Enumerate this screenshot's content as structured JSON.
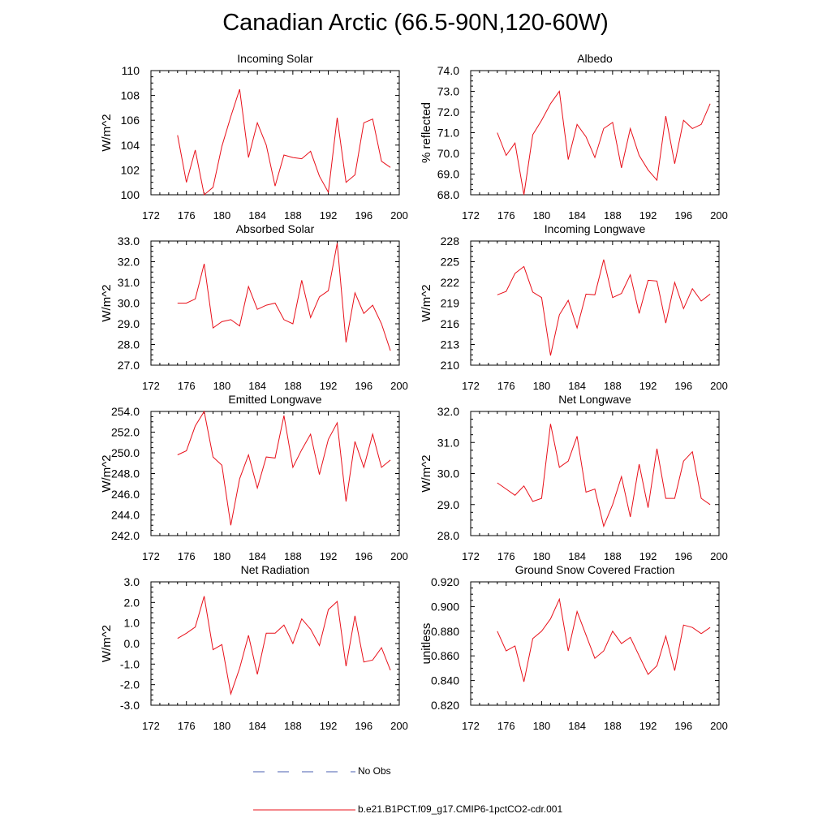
{
  "title": "Canadian Arctic (66.5-90N,120-60W)",
  "colors": {
    "series": "#e8101a",
    "obs": "#4a5fb0",
    "axis": "#000000"
  },
  "legend": {
    "obs_label": "No Obs",
    "model_label": "b.e21.B1PCT.f09_g17.CMIP6-1pctCO2-cdr.001"
  },
  "chart_data": [
    {
      "type": "line",
      "title": "Incoming Solar",
      "ylabel": "W/m^2",
      "xlim": [
        172,
        200
      ],
      "xticks": [
        "172",
        "176",
        "180",
        "184",
        "188",
        "192",
        "196",
        "200"
      ],
      "ylim": [
        100,
        110
      ],
      "yticks": [
        "100",
        "102",
        "104",
        "106",
        "108",
        "110"
      ],
      "x": [
        175,
        176,
        177,
        178,
        179,
        180,
        181,
        182,
        183,
        184,
        185,
        186,
        187,
        188,
        189,
        190,
        191,
        192,
        193,
        194,
        195,
        196,
        197,
        198,
        199
      ],
      "series": [
        {
          "values": [
            104.8,
            101.0,
            103.6,
            100.0,
            100.6,
            103.9,
            106.3,
            108.5,
            103.0,
            105.8,
            104.0,
            100.7,
            103.2,
            103.0,
            102.9,
            103.5,
            101.5,
            100.2,
            106.2,
            101.0,
            101.6,
            105.8,
            106.1,
            102.7,
            102.2
          ]
        }
      ]
    },
    {
      "type": "line",
      "title": "Albedo",
      "ylabel": "% reflected",
      "xlim": [
        172,
        200
      ],
      "xticks": [
        "172",
        "176",
        "180",
        "184",
        "188",
        "192",
        "196",
        "200"
      ],
      "ylim": [
        68.0,
        74.0
      ],
      "yticks": [
        "68.0",
        "69.0",
        "70.0",
        "71.0",
        "72.0",
        "73.0",
        "74.0"
      ],
      "x": [
        175,
        176,
        177,
        178,
        179,
        180,
        181,
        182,
        183,
        184,
        185,
        186,
        187,
        188,
        189,
        190,
        191,
        192,
        193,
        194,
        195,
        196,
        197,
        198,
        199
      ],
      "series": [
        {
          "values": [
            71.0,
            69.9,
            70.5,
            68.0,
            70.9,
            71.6,
            72.4,
            73.0,
            69.7,
            71.4,
            70.8,
            69.8,
            71.2,
            71.5,
            69.3,
            71.2,
            69.9,
            69.2,
            68.7,
            71.8,
            69.5,
            71.6,
            71.2,
            71.4,
            72.4
          ]
        }
      ]
    },
    {
      "type": "line",
      "title": "Absorbed Solar",
      "ylabel": "W/m^2",
      "xlim": [
        172,
        200
      ],
      "xticks": [
        "172",
        "176",
        "180",
        "184",
        "188",
        "192",
        "196",
        "200"
      ],
      "ylim": [
        27.0,
        33.0
      ],
      "yticks": [
        "27.0",
        "28.0",
        "29.0",
        "30.0",
        "31.0",
        "32.0",
        "33.0"
      ],
      "x": [
        175,
        176,
        177,
        178,
        179,
        180,
        181,
        182,
        183,
        184,
        185,
        186,
        187,
        188,
        189,
        190,
        191,
        192,
        193,
        194,
        195,
        196,
        197,
        198,
        199
      ],
      "series": [
        {
          "values": [
            30.0,
            30.0,
            30.2,
            31.9,
            28.8,
            29.1,
            29.2,
            28.9,
            30.8,
            29.7,
            29.9,
            30.0,
            29.2,
            29.0,
            31.1,
            29.3,
            30.3,
            30.6,
            32.9,
            28.1,
            30.5,
            29.5,
            29.9,
            29.0,
            27.7
          ]
        }
      ]
    },
    {
      "type": "line",
      "title": "Incoming Longwave",
      "ylabel": "W/m^2",
      "xlim": [
        172,
        200
      ],
      "xticks": [
        "172",
        "176",
        "180",
        "184",
        "188",
        "192",
        "196",
        "200"
      ],
      "ylim": [
        210,
        228
      ],
      "yticks": [
        "210",
        "213",
        "216",
        "219",
        "222",
        "225",
        "228"
      ],
      "x": [
        175,
        176,
        177,
        178,
        179,
        180,
        181,
        182,
        183,
        184,
        185,
        186,
        187,
        188,
        189,
        190,
        191,
        192,
        193,
        194,
        195,
        196,
        197,
        198,
        199
      ],
      "series": [
        {
          "values": [
            220.2,
            220.7,
            223.3,
            224.3,
            220.6,
            219.8,
            211.4,
            217.3,
            219.4,
            215.4,
            220.3,
            220.2,
            225.3,
            219.8,
            220.4,
            223.1,
            217.5,
            222.3,
            222.2,
            216.1,
            222.0,
            218.2,
            221.1,
            219.3,
            220.3
          ]
        }
      ]
    },
    {
      "type": "line",
      "title": "Emitted Longwave",
      "ylabel": "W/m^2",
      "xlim": [
        172,
        200
      ],
      "xticks": [
        "172",
        "176",
        "180",
        "184",
        "188",
        "192",
        "196",
        "200"
      ],
      "ylim": [
        242.0,
        254.0
      ],
      "yticks": [
        "242.0",
        "244.0",
        "246.0",
        "248.0",
        "250.0",
        "252.0",
        "254.0"
      ],
      "x": [
        175,
        176,
        177,
        178,
        179,
        180,
        181,
        182,
        183,
        184,
        185,
        186,
        187,
        188,
        189,
        190,
        191,
        192,
        193,
        194,
        195,
        196,
        197,
        198,
        199
      ],
      "series": [
        {
          "values": [
            249.8,
            250.2,
            252.6,
            254.0,
            249.6,
            248.8,
            243.0,
            247.5,
            249.8,
            246.6,
            249.6,
            249.5,
            253.6,
            248.6,
            250.3,
            251.8,
            247.9,
            251.3,
            252.9,
            245.3,
            251.1,
            248.6,
            251.8,
            248.6,
            249.3
          ]
        }
      ]
    },
    {
      "type": "line",
      "title": "Net Longwave",
      "ylabel": "W/m^2",
      "xlim": [
        172,
        200
      ],
      "xticks": [
        "172",
        "176",
        "180",
        "184",
        "188",
        "192",
        "196",
        "200"
      ],
      "ylim": [
        28.0,
        32.0
      ],
      "yticks": [
        "28.0",
        "29.0",
        "30.0",
        "31.0",
        "32.0"
      ],
      "x": [
        175,
        176,
        177,
        178,
        179,
        180,
        181,
        182,
        183,
        184,
        185,
        186,
        187,
        188,
        189,
        190,
        191,
        192,
        193,
        194,
        195,
        196,
        197,
        198,
        199
      ],
      "series": [
        {
          "values": [
            29.7,
            29.5,
            29.3,
            29.6,
            29.1,
            29.2,
            31.6,
            30.2,
            30.4,
            31.2,
            29.4,
            29.5,
            28.3,
            29.0,
            29.9,
            28.6,
            30.3,
            28.9,
            30.8,
            29.2,
            29.2,
            30.4,
            30.7,
            29.2,
            29.0
          ]
        }
      ]
    },
    {
      "type": "line",
      "title": "Net Radiation",
      "ylabel": "W/m^2",
      "xlim": [
        172,
        200
      ],
      "xticks": [
        "172",
        "176",
        "180",
        "184",
        "188",
        "192",
        "196",
        "200"
      ],
      "ylim": [
        -3.0,
        3.0
      ],
      "yticks": [
        "-3.0",
        "-2.0",
        "-1.0",
        "0.0",
        "1.0",
        "2.0",
        "3.0"
      ],
      "x": [
        175,
        176,
        177,
        178,
        179,
        180,
        181,
        182,
        183,
        184,
        185,
        186,
        187,
        188,
        189,
        190,
        191,
        192,
        193,
        194,
        195,
        196,
        197,
        198,
        199
      ],
      "series": [
        {
          "values": [
            0.25,
            0.5,
            0.8,
            2.3,
            -0.3,
            -0.05,
            -2.45,
            -1.2,
            0.4,
            -1.5,
            0.5,
            0.5,
            0.9,
            0.0,
            1.2,
            0.7,
            -0.1,
            1.65,
            2.05,
            -1.1,
            1.35,
            -0.9,
            -0.8,
            -0.2,
            -1.3
          ]
        }
      ]
    },
    {
      "type": "line",
      "title": "Ground Snow Covered Fraction",
      "ylabel": "unitless",
      "xlim": [
        172,
        200
      ],
      "xticks": [
        "172",
        "176",
        "180",
        "184",
        "188",
        "192",
        "196",
        "200"
      ],
      "ylim": [
        0.82,
        0.92
      ],
      "yticks": [
        "0.820",
        "0.840",
        "0.860",
        "0.880",
        "0.900",
        "0.920"
      ],
      "x": [
        175,
        176,
        177,
        178,
        179,
        180,
        181,
        182,
        183,
        184,
        185,
        186,
        187,
        188,
        189,
        190,
        191,
        192,
        193,
        194,
        195,
        196,
        197,
        198,
        199
      ],
      "series": [
        {
          "values": [
            0.88,
            0.864,
            0.868,
            0.839,
            0.874,
            0.88,
            0.89,
            0.906,
            0.864,
            0.896,
            0.877,
            0.858,
            0.864,
            0.88,
            0.87,
            0.875,
            0.86,
            0.845,
            0.852,
            0.876,
            0.848,
            0.885,
            0.883,
            0.878,
            0.883
          ]
        }
      ]
    }
  ]
}
